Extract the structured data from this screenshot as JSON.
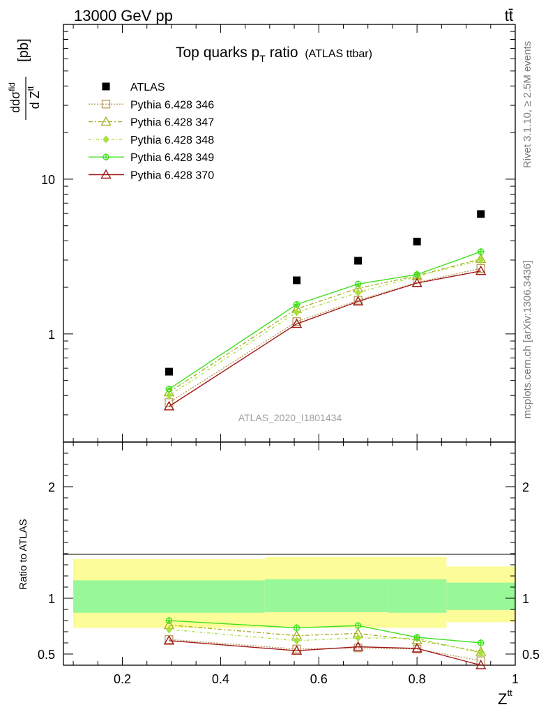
{
  "header": {
    "left": "13000 GeV pp",
    "right": "tt̄"
  },
  "title": {
    "main": "Top quarks p",
    "sub": "T",
    "tail": " ratio",
    "small": "(ATLAS ttbar)"
  },
  "ylabel_main": {
    "a": "d",
    "b": "dσ",
    "sup": "fid",
    "den": "d Z",
    "densup": "tt",
    "unit": "[pb]"
  },
  "ylabel_ratio": "Ratio to ATLAS",
  "xlabel": {
    "main": "Z",
    "sup": "tt"
  },
  "side_text": {
    "rivet": "Rivet 3.1.10, ≥ 2.5M events",
    "mcplots": "mcplots.cern.ch [arXiv:1306.3436]"
  },
  "watermark": "ATLAS_2020_I1801434",
  "colors": {
    "atlas": "#000000",
    "p346": "#b89a5a",
    "p347": "#a8b020",
    "p348": "#a8e040",
    "p349": "#40e020",
    "p370": "#a01818",
    "band_inner": "#98f898",
    "band_outer": "#fcfc98"
  },
  "chart_data": [
    {
      "type": "scatter",
      "panel": "main",
      "yscale": "log",
      "xlim": [
        0.08,
        1.0
      ],
      "ylim": [
        0.2,
        100
      ],
      "xticks": [
        0.2,
        0.4,
        0.6,
        0.8,
        1
      ],
      "xtick_labels": [
        "0.2",
        "0.4",
        "0.6",
        "0.8",
        "1"
      ],
      "yticks_major": [
        1,
        10
      ],
      "ytick_labels": [
        "1",
        "10"
      ],
      "x": [
        0.295,
        0.555,
        0.68,
        0.8,
        0.93
      ],
      "series": [
        {
          "name": "ATLAS",
          "marker": "square",
          "values": [
            0.57,
            2.22,
            2.97,
            3.95,
            5.95
          ]
        },
        {
          "name": "Pythia 6.428 346",
          "marker": "square-open",
          "line": "dotted",
          "values": [
            0.36,
            1.2,
            1.65,
            2.15,
            2.65
          ]
        },
        {
          "name": "Pythia 6.428 347",
          "marker": "triangle-open",
          "line": "dashdot",
          "values": [
            0.42,
            1.45,
            1.97,
            2.38,
            3.05
          ]
        },
        {
          "name": "Pythia 6.428 348",
          "marker": "diamond",
          "line": "dashdot2",
          "values": [
            0.4,
            1.38,
            1.85,
            2.35,
            3.0
          ]
        },
        {
          "name": "Pythia 6.428 349",
          "marker": "cross-circle",
          "line": "solid",
          "values": [
            0.44,
            1.55,
            2.1,
            2.42,
            3.4
          ]
        },
        {
          "name": "Pythia 6.428 370",
          "marker": "triangle-open",
          "line": "solid",
          "values": [
            0.34,
            1.16,
            1.62,
            2.13,
            2.55
          ]
        }
      ]
    },
    {
      "type": "line",
      "panel": "ratio",
      "xlim": [
        0.08,
        1.0
      ],
      "ylim": [
        0.4,
        2.4
      ],
      "yticks": [
        0.5,
        1,
        2
      ],
      "ytick_labels": [
        "0.5",
        "1",
        "2"
      ],
      "x": [
        0.295,
        0.555,
        0.68,
        0.8,
        0.93
      ],
      "bands": {
        "edges": [
          0.1,
          0.49,
          0.74,
          0.86,
          1.0
        ],
        "inner_low": [
          0.87,
          0.875,
          0.87,
          0.895,
          0.88
        ],
        "inner_high": [
          1.16,
          1.17,
          1.17,
          1.14,
          1.14
        ],
        "outer_low": [
          0.735,
          0.735,
          0.735,
          0.785,
          0.75
        ],
        "outer_high": [
          1.35,
          1.37,
          1.37,
          1.285,
          1.285
        ]
      },
      "series": [
        {
          "name": "Pythia 6.428 346",
          "values": [
            0.63,
            0.545,
            0.555,
            0.545,
            0.44
          ]
        },
        {
          "name": "Pythia 6.428 347",
          "values": [
            0.76,
            0.665,
            0.685,
            0.625,
            0.52
          ]
        },
        {
          "name": "Pythia 6.428 348",
          "values": [
            0.72,
            0.62,
            0.645,
            0.64,
            0.51
          ]
        },
        {
          "name": "Pythia 6.428 349",
          "values": [
            0.8,
            0.735,
            0.755,
            0.65,
            0.6
          ]
        },
        {
          "name": "Pythia 6.428 370",
          "values": [
            0.62,
            0.53,
            0.565,
            0.55,
            0.4
          ]
        }
      ]
    }
  ]
}
